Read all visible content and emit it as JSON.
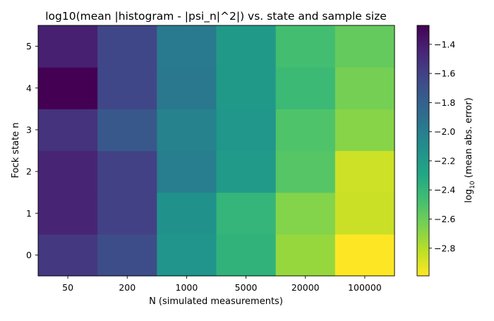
{
  "chart_data": {
    "type": "heatmap",
    "title": "log10(mean |histogram - |psi_n|^2|) vs. state and sample size",
    "xlabel": "N (simulated measurements)",
    "ylabel": "Fock state n",
    "x_categories": [
      "50",
      "200",
      "1000",
      "5000",
      "20000",
      "100000"
    ],
    "y_categories": [
      "0",
      "1",
      "2",
      "3",
      "4",
      "5"
    ],
    "values": [
      [
        -1.55,
        -1.67,
        -2.16,
        -2.38,
        -2.72,
        -2.99
      ],
      [
        -1.44,
        -1.6,
        -2.13,
        -2.4,
        -2.67,
        -2.85
      ],
      [
        -1.44,
        -1.6,
        -1.99,
        -2.2,
        -2.53,
        -2.86
      ],
      [
        -1.52,
        -1.74,
        -2.03,
        -2.17,
        -2.51,
        -2.68
      ],
      [
        -1.27,
        -1.63,
        -1.96,
        -2.19,
        -2.43,
        -2.63
      ],
      [
        -1.42,
        -1.63,
        -1.97,
        -2.19,
        -2.47,
        -2.58
      ]
    ],
    "colorbar": {
      "label_prefix": "log",
      "label_sub": "10",
      "label_suffix": " (mean abs. error)",
      "min": -2.99,
      "max": -1.27,
      "ticks": [
        -1.4,
        -1.6,
        -1.8,
        -2.0,
        -2.2,
        -2.4,
        -2.6,
        -2.8
      ],
      "tick_labels": [
        "−1.4",
        "−1.6",
        "−1.8",
        "−2.0",
        "−2.2",
        "−2.4",
        "−2.6",
        "−2.8"
      ],
      "colormap": "viridis_r"
    },
    "grid": false
  }
}
